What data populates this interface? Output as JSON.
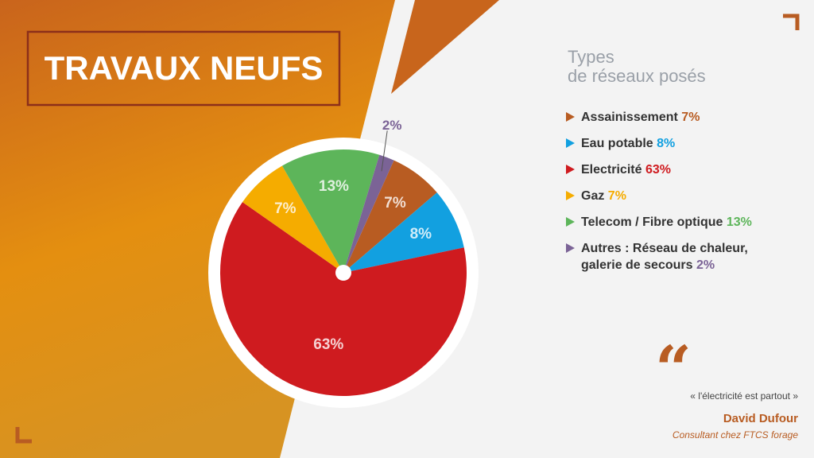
{
  "header": {
    "title": "TRAVAUX NEUFS"
  },
  "chart_data": {
    "type": "pie",
    "subtitle": [
      "Types",
      "de réseaux posés"
    ],
    "categories": [
      "Assainissement",
      "Eau potable",
      "Electricité",
      "Gaz",
      "Telecom / Fibre optique",
      "Autres : Réseau de chaleur, galerie de secours"
    ],
    "values": [
      7,
      8,
      63,
      7,
      13,
      2
    ],
    "value_labels": [
      "7%",
      "8%",
      "63%",
      "7%",
      "13%",
      "2%"
    ],
    "colors": [
      "#b85c22",
      "#12a0e0",
      "#cf1b1f",
      "#f5ac00",
      "#5db55a",
      "#7b6396"
    ]
  },
  "quote": {
    "text": "« l'électricité est partout »",
    "author": "David Dufour",
    "role": "Consultant chez FTCS forage"
  }
}
